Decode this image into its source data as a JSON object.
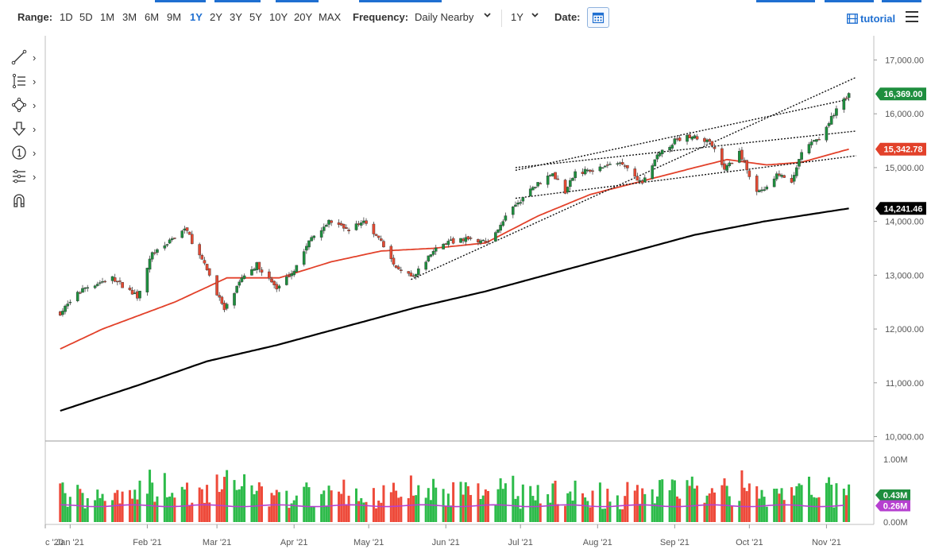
{
  "toolbar": {
    "range_label": "Range:",
    "ranges": [
      "1D",
      "5D",
      "1M",
      "3M",
      "6M",
      "9M",
      "1Y",
      "2Y",
      "3Y",
      "5Y",
      "10Y",
      "20Y",
      "MAX"
    ],
    "active_range": "1Y",
    "frequency_label": "Frequency:",
    "frequency_value": "Daily Nearby",
    "period_value": "1Y",
    "date_label": "Date:",
    "tutorial_label": "tutorial"
  },
  "tools": [
    "trendline-tool-icon",
    "fibonacci-tool-icon",
    "shapes-tool-icon",
    "arrow-tool-icon",
    "annotation-tool-icon",
    "indicator-tool-icon",
    "magnet-tool-icon"
  ],
  "colors": {
    "up": "#1e8e3e",
    "down": "#e34a33",
    "ma_short": "#e2412a",
    "ma_long": "#000000",
    "vol_avg": "#b640d0",
    "vol_up": "#2dbb4a",
    "vol_down": "#ee4a3a",
    "accent": "#1f6fd1"
  },
  "chart_data": {
    "type": "candlestick",
    "price_axis": {
      "ylim": [
        10000,
        17000
      ],
      "ticks": [
        "17,000.00",
        "16,000.00",
        "15,000.00",
        "14,000.00",
        "13,000.00",
        "12,000.00",
        "11,000.00",
        "10,000.00"
      ]
    },
    "volume_axis": {
      "ticks": [
        "1.00M",
        "0.00M"
      ]
    },
    "x_tick_labels": [
      "c '20",
      "Jan '21",
      "Feb '21",
      "Mar '21",
      "Apr '21",
      "May '21",
      "Jun '21",
      "Jul '21",
      "Aug '21",
      "Sep '21",
      "Oct '21",
      "Nov '21"
    ],
    "price_labels": [
      {
        "value": 16369.0,
        "text": "16,369.00",
        "color": "#1e8e3e"
      },
      {
        "value": 15342.78,
        "text": "15,342.78",
        "color": "#e2412a"
      },
      {
        "value": 14241.46,
        "text": "14,241.46",
        "color": "#000000"
      }
    ],
    "volume_labels": [
      {
        "value": 0.43,
        "text": "0.43M",
        "color": "#1e8e3e"
      },
      {
        "value": 0.26,
        "text": "0.26M",
        "color": "#b640d0"
      }
    ],
    "price_path_anchors": [
      [
        "2020-12-28",
        12300
      ],
      [
        "2021-01-06",
        12750
      ],
      [
        "2021-01-18",
        12950
      ],
      [
        "2021-01-28",
        12600
      ],
      [
        "2021-02-03",
        13400
      ],
      [
        "2021-02-12",
        13700
      ],
      [
        "2021-02-16",
        13900
      ],
      [
        "2021-02-26",
        13000
      ],
      [
        "2021-03-04",
        12350
      ],
      [
        "2021-03-12",
        13000
      ],
      [
        "2021-03-17",
        13200
      ],
      [
        "2021-03-25",
        12750
      ],
      [
        "2021-04-01",
        13100
      ],
      [
        "2021-04-08",
        13700
      ],
      [
        "2021-04-15",
        14000
      ],
      [
        "2021-04-23",
        13850
      ],
      [
        "2021-04-29",
        14000
      ],
      [
        "2021-05-06",
        13650
      ],
      [
        "2021-05-12",
        13100
      ],
      [
        "2021-05-19",
        12950
      ],
      [
        "2021-05-26",
        13400
      ],
      [
        "2021-06-01",
        13600
      ],
      [
        "2021-06-10",
        13700
      ],
      [
        "2021-06-18",
        13600
      ],
      [
        "2021-06-25",
        14100
      ],
      [
        "2021-07-01",
        14400
      ],
      [
        "2021-07-08",
        14700
      ],
      [
        "2021-07-14",
        14900
      ],
      [
        "2021-07-19",
        14550
      ],
      [
        "2021-07-23",
        14900
      ],
      [
        "2021-08-02",
        15000
      ],
      [
        "2021-08-11",
        15100
      ],
      [
        "2021-08-19",
        14700
      ],
      [
        "2021-08-25",
        15200
      ],
      [
        "2021-09-01",
        15500
      ],
      [
        "2021-09-08",
        15600
      ],
      [
        "2021-09-16",
        15450
      ],
      [
        "2021-09-21",
        14950
      ],
      [
        "2021-09-27",
        15300
      ],
      [
        "2021-10-04",
        14550
      ],
      [
        "2021-10-08",
        14650
      ],
      [
        "2021-10-13",
        14900
      ],
      [
        "2021-10-18",
        14700
      ],
      [
        "2021-10-22",
        15300
      ],
      [
        "2021-10-29",
        15550
      ],
      [
        "2021-11-04",
        16000
      ],
      [
        "2021-11-10",
        16369
      ]
    ],
    "ma_short_anchors": [
      [
        "2020-12-28",
        11630
      ],
      [
        "2021-01-14",
        12000
      ],
      [
        "2021-02-12",
        12500
      ],
      [
        "2021-03-05",
        12950
      ],
      [
        "2021-03-26",
        12950
      ],
      [
        "2021-04-16",
        13250
      ],
      [
        "2021-05-06",
        13450
      ],
      [
        "2021-05-27",
        13500
      ],
      [
        "2021-06-17",
        13600
      ],
      [
        "2021-07-08",
        14100
      ],
      [
        "2021-07-29",
        14500
      ],
      [
        "2021-08-19",
        14750
      ],
      [
        "2021-09-09",
        15000
      ],
      [
        "2021-09-22",
        15150
      ],
      [
        "2021-10-08",
        15050
      ],
      [
        "2021-10-22",
        15100
      ],
      [
        "2021-11-10",
        15342.78
      ]
    ],
    "ma_long_anchors": [
      [
        "2020-12-28",
        10480
      ],
      [
        "2021-01-28",
        10950
      ],
      [
        "2021-02-25",
        11400
      ],
      [
        "2021-03-25",
        11700
      ],
      [
        "2021-04-22",
        12050
      ],
      [
        "2021-05-20",
        12400
      ],
      [
        "2021-06-17",
        12700
      ],
      [
        "2021-07-15",
        13050
      ],
      [
        "2021-08-12",
        13400
      ],
      [
        "2021-09-09",
        13750
      ],
      [
        "2021-10-07",
        14000
      ],
      [
        "2021-11-10",
        14241.46
      ]
    ],
    "trend_lines": [
      {
        "from": [
          "2021-05-18",
          12920
        ],
        "to": [
          "2021-11-13",
          16680
        ]
      },
      {
        "from": [
          "2021-06-29",
          14430
        ],
        "to": [
          "2021-11-13",
          15220
        ]
      },
      {
        "from": [
          "2021-06-29",
          15000
        ],
        "to": [
          "2021-11-13",
          15680
        ]
      },
      {
        "from": [
          "2021-06-29",
          14950
        ],
        "to": [
          "2021-11-10",
          16270
        ]
      }
    ],
    "volume": {
      "avg_level": 0.26,
      "latest": 0.43,
      "ylim": [
        0,
        1.0
      ]
    }
  }
}
